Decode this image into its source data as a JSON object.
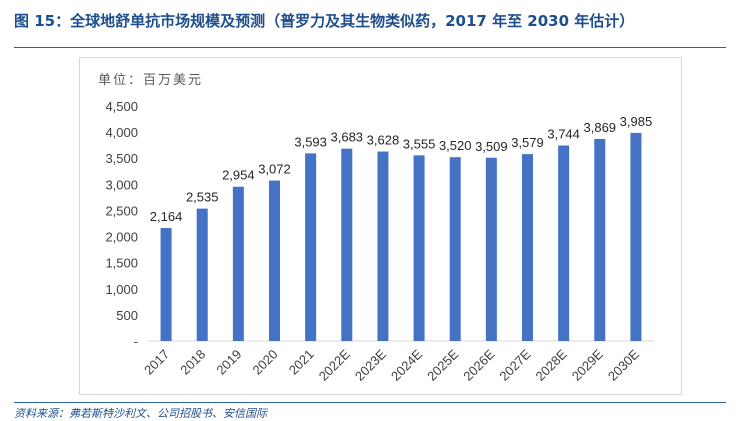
{
  "header": {
    "title": "图 15：全球地舒单抗市场规模及预测（普罗力及其生物类似药，2017 年至 2030 年估计）"
  },
  "unit_label": "单位：百万美元",
  "source_note": "资料来源：弗若斯特沙利文、公司招股书、安信国际",
  "colors": {
    "bar": "#4472c4",
    "title": "#1f4e8c",
    "rule": "#2e5e9e"
  },
  "chart_data": {
    "type": "bar",
    "title": "",
    "xlabel": "",
    "ylabel": "",
    "categories": [
      "2017",
      "2018",
      "2019",
      "2020",
      "2021",
      "2022E",
      "2023E",
      "2024E",
      "2025E",
      "2026E",
      "2027E",
      "2028E",
      "2029E",
      "2030E"
    ],
    "values": [
      2164,
      2535,
      2954,
      3072,
      3593,
      3683,
      3628,
      3555,
      3520,
      3509,
      3579,
      3744,
      3869,
      3985
    ],
    "data_labels": [
      "2,164",
      "2,535",
      "2,954",
      "3,072",
      "3,593",
      "3,683",
      "3,628",
      "3,555",
      "3,520",
      "3,509",
      "3,579",
      "3,744",
      "3,869",
      "3,985"
    ],
    "ylim": [
      0,
      4500
    ],
    "yticks": [
      0,
      500,
      1000,
      1500,
      2000,
      2500,
      3000,
      3500,
      4000,
      4500
    ],
    "ytick_labels": [
      "-",
      "500",
      "1,000",
      "1,500",
      "2,000",
      "2,500",
      "3,000",
      "3,500",
      "4,000",
      "4,500"
    ],
    "grid": false,
    "legend": "none"
  }
}
